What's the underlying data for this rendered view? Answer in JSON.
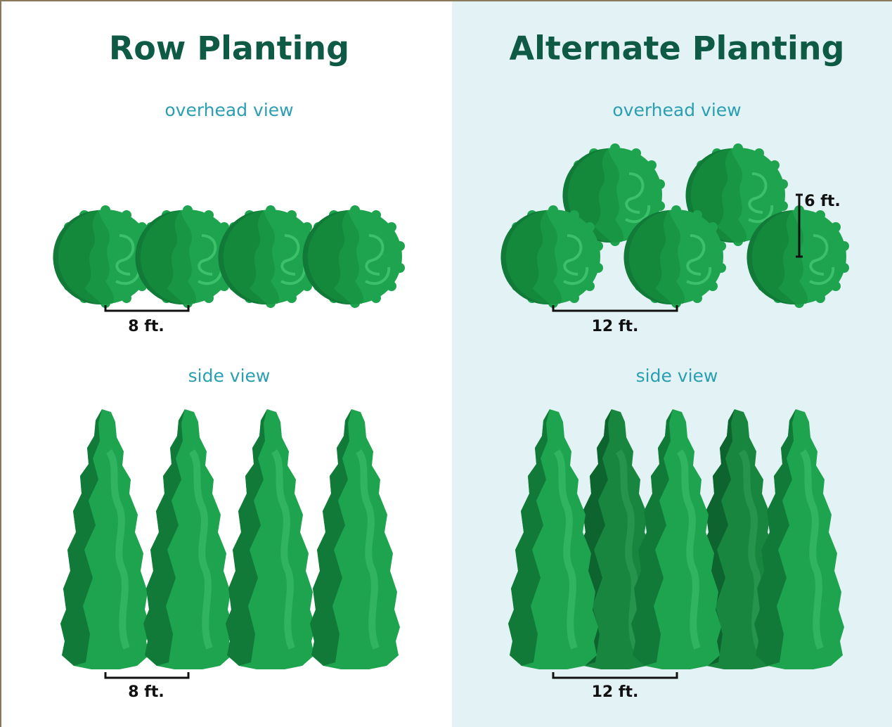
{
  "panels": [
    {
      "title": "Row Planting",
      "overhead_label": "overhead view",
      "overhead_spacing": "8 ft.",
      "side_label": "side view",
      "side_spacing": "8 ft."
    },
    {
      "title": "Alternate Planting",
      "overhead_label": "overhead view",
      "overhead_spacing": "12 ft.",
      "row_offset": "6 ft.",
      "side_label": "side view",
      "side_spacing": "12 ft."
    }
  ]
}
